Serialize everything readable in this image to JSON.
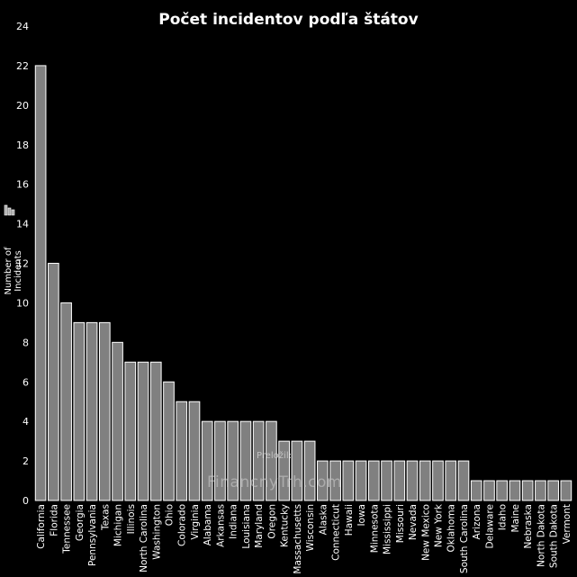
{
  "chart_data": {
    "type": "bar",
    "title": "Počet incidentov podľa štátov",
    "xlabel": "",
    "ylabel": "Number of Incidents",
    "ylim": [
      0,
      24
    ],
    "yticks": [
      0,
      2,
      4,
      6,
      8,
      10,
      12,
      14,
      16,
      18,
      20,
      22,
      24
    ],
    "grid": false,
    "categories": [
      "California",
      "Florida",
      "Tennessee",
      "Georgia",
      "Pennsylvania",
      "Texas",
      "Michigan",
      "Illinois",
      "North Carolina",
      "Washington",
      "Ohio",
      "Colorado",
      "Virginia",
      "Alabama",
      "Arkansas",
      "Indiana",
      "Louisiana",
      "Maryland",
      "Oregon",
      "Kentucky",
      "Massachusetts",
      "Wisconsin",
      "Alaska",
      "Connecticut",
      "Hawaii",
      "Iowa",
      "Minnesota",
      "Mississippi",
      "Missouri",
      "Nevada",
      "New Mexico",
      "New York",
      "Oklahoma",
      "South Carolina",
      "Arizona",
      "Delaware",
      "Idaho",
      "Maine",
      "Nebraska",
      "North Dakota",
      "South Dakota",
      "Vermont"
    ],
    "values": [
      22,
      12,
      10,
      9,
      9,
      9,
      8,
      7,
      7,
      7,
      6,
      5,
      5,
      4,
      4,
      4,
      4,
      4,
      4,
      3,
      3,
      3,
      2,
      2,
      2,
      2,
      2,
      2,
      2,
      2,
      2,
      2,
      2,
      2,
      1,
      1,
      1,
      1,
      1,
      1,
      1,
      1
    ],
    "bar_color": "#808080",
    "bar_edge_color": "#ffffff",
    "background": "#000000",
    "text_color": "#ffffff"
  },
  "watermark": {
    "caption": "Preložil:",
    "site": "FinancnyTrh.com"
  }
}
